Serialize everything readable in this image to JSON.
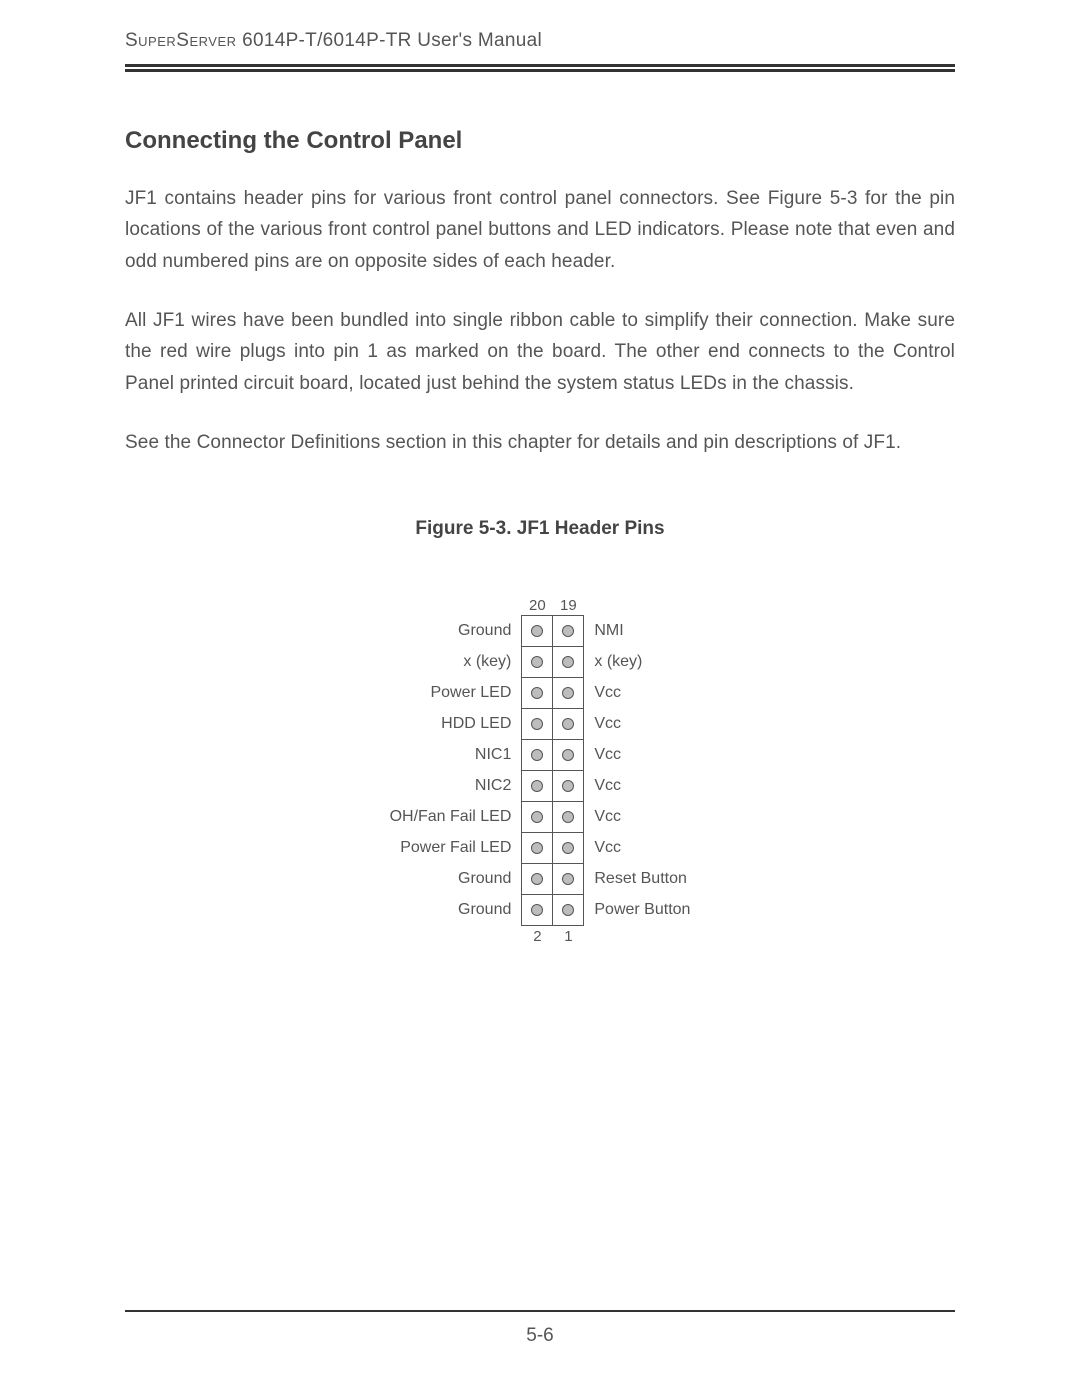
{
  "header": {
    "product_sc": "SuperServer",
    "model_suffix": " 6014P-T/6014P-TR User's Manual"
  },
  "section": {
    "title": "Connecting the Control Panel",
    "para1": "JF1 contains header pins for various front control panel connectors.  See Figure 5-3 for the pin locations of the various front control panel buttons and LED indicators.  Please note that even and odd numbered pins are on opposite sides of each header.",
    "para2": "All JF1 wires have been bundled into single ribbon cable to simplify their connection.  Make sure the red wire plugs into pin 1 as marked on the board.  The other end connects to the Control Panel printed circuit board, located just behind the system status LEDs in the chassis.",
    "para3": "See the Connector Definitions section in this chapter for details and pin descriptions of JF1."
  },
  "figure": {
    "caption": "Figure 5-3. JF1 Header Pins",
    "top_left_num": "20",
    "top_right_num": "19",
    "bottom_left_num": "2",
    "bottom_right_num": "1",
    "rows": [
      {
        "left": "Ground",
        "right": "NMI"
      },
      {
        "left": "x (key)",
        "right": "x (key)"
      },
      {
        "left": "Power LED",
        "right": "Vcc"
      },
      {
        "left": "HDD LED",
        "right": "Vcc"
      },
      {
        "left": "NIC1",
        "right": "Vcc"
      },
      {
        "left": "NIC2",
        "right": "Vcc"
      },
      {
        "left": "OH/Fan Fail LED",
        "right": "Vcc"
      },
      {
        "left": "Power Fail LED",
        "right": "Vcc"
      },
      {
        "left": "Ground",
        "right": "Reset Button"
      },
      {
        "left": "Ground",
        "right": "Power Button"
      }
    ],
    "pin_fill": "#bdbdbd",
    "pin_border": "#555555",
    "cell_border": "#555555"
  },
  "footer": {
    "page_number": "5-6"
  }
}
